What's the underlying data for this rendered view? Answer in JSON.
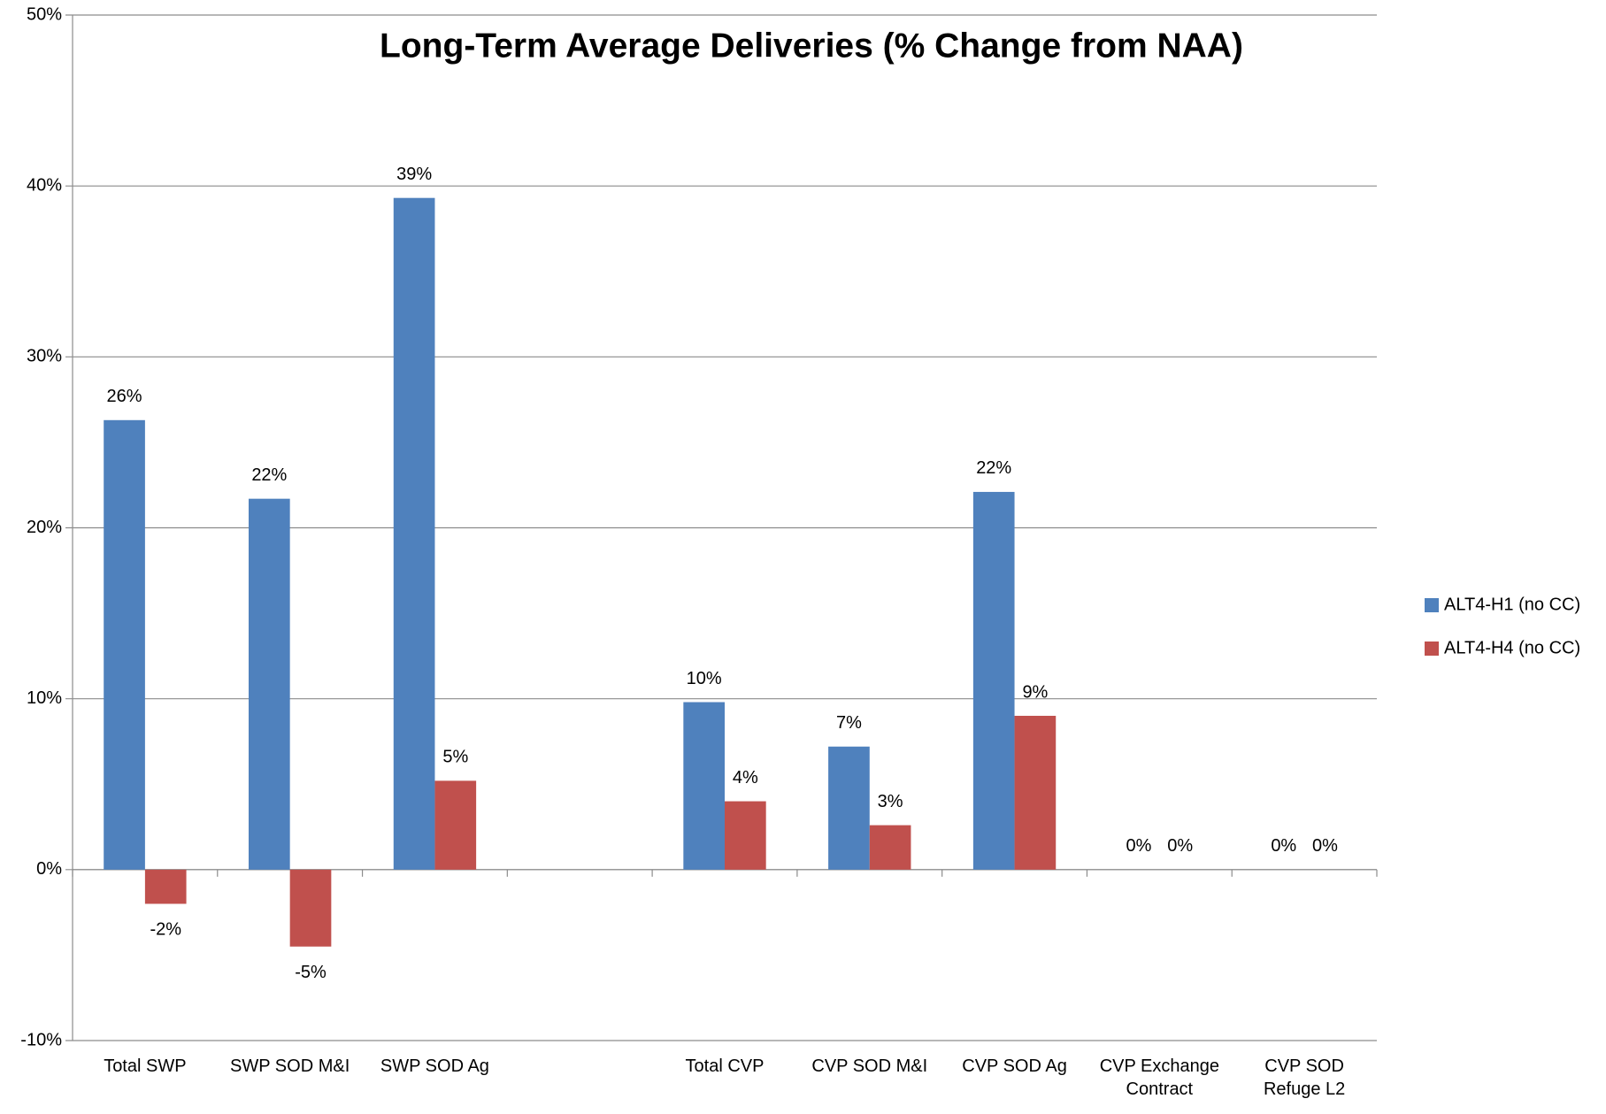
{
  "chart_data": {
    "type": "bar",
    "title": "Long-Term Average Deliveries (% Change from NAA)",
    "categories": [
      "Total SWP",
      "SWP SOD M&I",
      "SWP SOD Ag",
      null,
      "Total CVP",
      "CVP SOD M&I",
      "CVP SOD Ag",
      "CVP Exchange Contract",
      "CVP SOD Refuge L2"
    ],
    "series": [
      {
        "name": "ALT4-H1 (no CC)",
        "color": "#4f81bd",
        "values": [
          26.3,
          21.7,
          39.3,
          null,
          9.8,
          7.2,
          22.1,
          0,
          0
        ],
        "value_labels": [
          "26%",
          "22%",
          "39%",
          null,
          "10%",
          "7%",
          "22%",
          "0%",
          "0%"
        ]
      },
      {
        "name": "ALT4-H4 (no CC)",
        "color": "#c0504d",
        "values": [
          -2.0,
          -4.5,
          5.2,
          null,
          4.0,
          2.6,
          9.0,
          0,
          0
        ],
        "value_labels": [
          "-2%",
          "-5%",
          "5%",
          null,
          "4%",
          "3%",
          "9%",
          "0%",
          "0%"
        ]
      }
    ],
    "ylim": [
      -10,
      50
    ],
    "yticks": [
      {
        "value": -10,
        "label": "-10%"
      },
      {
        "value": 0,
        "label": "0%"
      },
      {
        "value": 10,
        "label": "10%"
      },
      {
        "value": 20,
        "label": "20%"
      },
      {
        "value": 30,
        "label": "30%"
      },
      {
        "value": 40,
        "label": "40%"
      },
      {
        "value": 50,
        "label": "50%"
      }
    ],
    "grid": true,
    "legend": "right"
  }
}
